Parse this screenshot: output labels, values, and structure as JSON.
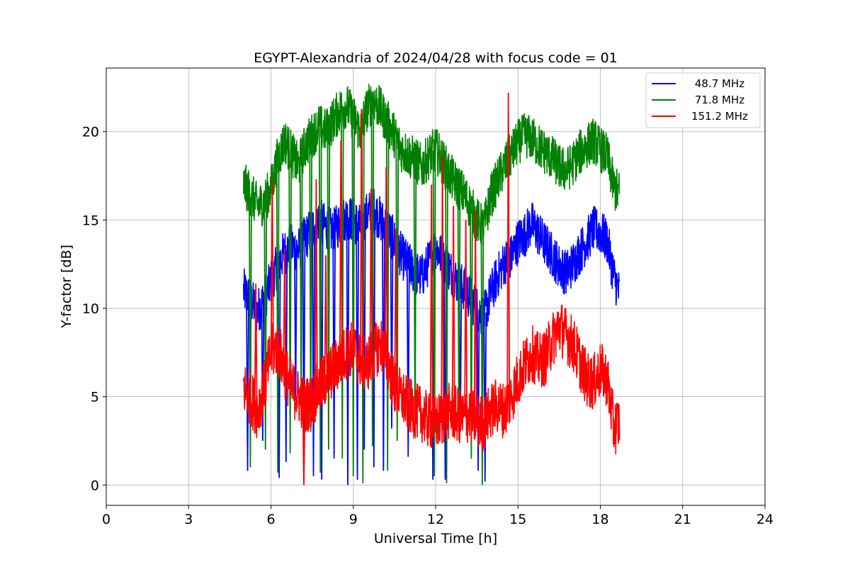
{
  "chart_data": {
    "type": "line",
    "title": "EGYPT-Alexandria of 2024/04/28 with focus code = 01",
    "xlabel": "Universal Time [h]",
    "ylabel": "Y-factor [dB]",
    "xlim": [
      0,
      24
    ],
    "ylim": [
      -1.15,
      23.6
    ],
    "xticks": [
      0,
      3,
      6,
      9,
      12,
      15,
      18,
      21,
      24
    ],
    "yticks": [
      0,
      5,
      10,
      15,
      20
    ],
    "grid": true,
    "legend_position": "top-right",
    "series": [
      {
        "name": "48.7 MHz",
        "color": "#0000ff",
        "x": [
          5.0,
          5.25,
          5.5,
          5.75,
          6.0,
          6.25,
          6.5,
          6.75,
          7.0,
          7.25,
          7.5,
          7.75,
          8.0,
          8.25,
          8.5,
          8.75,
          9.0,
          9.25,
          9.5,
          9.75,
          10.0,
          10.25,
          10.5,
          10.75,
          11.0,
          11.25,
          11.5,
          11.75,
          12.0,
          12.25,
          12.5,
          12.75,
          13.0,
          13.25,
          13.5,
          13.75,
          14.0,
          14.25,
          14.5,
          14.75,
          15.0,
          15.25,
          15.5,
          15.75,
          16.0,
          16.25,
          16.5,
          16.75,
          17.0,
          17.25,
          17.5,
          17.75,
          18.0,
          18.25,
          18.5,
          18.7
        ],
        "y": [
          11.0,
          10.5,
          9.8,
          10.5,
          11.5,
          12.5,
          13.2,
          13.5,
          13.3,
          14.0,
          14.5,
          15.0,
          14.6,
          14.3,
          14.8,
          15.2,
          15.0,
          14.6,
          15.3,
          15.6,
          15.0,
          14.5,
          13.8,
          13.0,
          12.5,
          12.0,
          11.8,
          12.6,
          13.5,
          12.8,
          12.2,
          11.6,
          11.2,
          10.6,
          10.0,
          9.5,
          10.8,
          11.8,
          12.6,
          12.9,
          13.8,
          14.2,
          14.8,
          14.2,
          13.6,
          13.0,
          12.4,
          12.0,
          12.5,
          13.2,
          13.8,
          14.5,
          14.3,
          13.8,
          11.8,
          10.8
        ]
      },
      {
        "name": "71.8 MHz",
        "color": "#008000",
        "x": [
          5.0,
          5.25,
          5.5,
          5.75,
          6.0,
          6.25,
          6.5,
          6.75,
          7.0,
          7.25,
          7.5,
          7.75,
          8.0,
          8.25,
          8.5,
          8.75,
          9.0,
          9.25,
          9.5,
          9.75,
          10.0,
          10.25,
          10.5,
          10.75,
          11.0,
          11.25,
          11.5,
          11.75,
          12.0,
          12.25,
          12.5,
          12.75,
          13.0,
          13.25,
          13.5,
          13.75,
          14.0,
          14.25,
          14.5,
          14.75,
          15.0,
          15.25,
          15.5,
          15.75,
          16.0,
          16.25,
          16.5,
          16.75,
          17.0,
          17.25,
          17.5,
          17.75,
          18.0,
          18.25,
          18.5,
          18.7
        ],
        "y": [
          17.0,
          16.5,
          15.8,
          16.0,
          16.8,
          18.5,
          19.5,
          18.8,
          18.0,
          19.2,
          19.8,
          20.3,
          20.0,
          20.6,
          21.2,
          21.5,
          20.8,
          20.0,
          21.3,
          21.8,
          21.2,
          20.5,
          19.8,
          19.0,
          18.7,
          18.4,
          18.0,
          18.6,
          19.0,
          18.3,
          17.6,
          17.0,
          16.5,
          15.8,
          15.0,
          14.5,
          16.3,
          17.2,
          18.0,
          18.7,
          19.4,
          19.8,
          19.6,
          19.2,
          18.8,
          18.5,
          18.0,
          17.8,
          18.2,
          18.8,
          19.2,
          19.5,
          19.0,
          18.6,
          16.8,
          16.5
        ]
      },
      {
        "name": "151.2 MHz",
        "color": "#ff0000",
        "x": [
          5.0,
          5.25,
          5.5,
          5.75,
          6.0,
          6.25,
          6.5,
          6.75,
          7.0,
          7.25,
          7.5,
          7.75,
          8.0,
          8.25,
          8.5,
          8.75,
          9.0,
          9.25,
          9.5,
          9.75,
          10.0,
          10.25,
          10.5,
          10.75,
          11.0,
          11.25,
          11.5,
          11.75,
          12.0,
          12.25,
          12.5,
          12.75,
          13.0,
          13.25,
          13.5,
          13.75,
          14.0,
          14.25,
          14.5,
          14.75,
          15.0,
          15.25,
          15.5,
          15.75,
          16.0,
          16.25,
          16.5,
          16.75,
          17.0,
          17.25,
          17.5,
          17.75,
          18.0,
          18.25,
          18.5,
          18.7
        ],
        "y": [
          5.5,
          5.0,
          4.2,
          5.5,
          7.5,
          7.8,
          6.5,
          5.5,
          5.0,
          4.5,
          4.8,
          5.5,
          6.0,
          6.5,
          7.0,
          7.5,
          7.8,
          7.0,
          6.8,
          7.5,
          8.0,
          7.0,
          5.5,
          5.0,
          4.5,
          4.2,
          4.0,
          3.6,
          3.5,
          3.8,
          4.2,
          4.0,
          3.8,
          4.0,
          3.6,
          3.5,
          4.2,
          4.5,
          4.2,
          5.0,
          6.0,
          6.8,
          7.5,
          7.0,
          7.2,
          8.2,
          9.0,
          8.5,
          8.0,
          7.0,
          6.0,
          5.8,
          6.5,
          6.0,
          3.2,
          3.6
        ]
      }
    ],
    "spikes": [
      {
        "series": "48.7 MHz",
        "x": [
          5.15,
          5.7,
          6.3,
          6.55,
          6.9,
          7.2,
          7.55,
          7.85,
          8.3,
          8.8,
          9.15,
          9.4,
          9.75,
          10.1,
          10.4,
          11.0,
          11.9,
          12.35,
          12.9,
          13.55,
          13.8
        ],
        "y": [
          0.8,
          2.5,
          0.4,
          1.3,
          4.8,
          1.0,
          0.5,
          0.3,
          1.5,
          0.0,
          0.3,
          2.0,
          1.0,
          0.8,
          3.2,
          1.6,
          0.3,
          0.3,
          3.0,
          0.8,
          0.2
        ]
      },
      {
        "series": "71.8 MHz",
        "x": [
          5.25,
          5.8,
          6.25,
          6.7,
          7.1,
          7.45,
          7.8,
          8.1,
          8.6,
          9.0,
          9.35,
          9.7,
          10.25,
          10.6,
          11.25,
          11.95,
          12.4,
          12.85,
          13.3,
          13.7
        ],
        "y": [
          1.0,
          2.0,
          0.7,
          1.8,
          5.0,
          3.0,
          0.7,
          2.0,
          1.5,
          0.5,
          0.1,
          2.2,
          0.8,
          2.5,
          2.8,
          0.5,
          0.1,
          2.5,
          1.5,
          0.0
        ]
      },
      {
        "series": "151.2 MHz",
        "x": [
          5.45,
          6.05,
          6.5,
          7.2,
          7.65,
          8.0,
          8.55,
          9.3,
          9.65,
          10.2,
          10.55,
          11.85,
          12.25,
          12.65,
          13.1,
          13.45,
          14.65
        ],
        "y": [
          11.4,
          17.2,
          13.4,
          0.0,
          17.3,
          13.0,
          19.5,
          21.3,
          16.8,
          18.0,
          14.5,
          17.0,
          18.7,
          15.8,
          15.0,
          15.5,
          22.2
        ]
      }
    ]
  }
}
